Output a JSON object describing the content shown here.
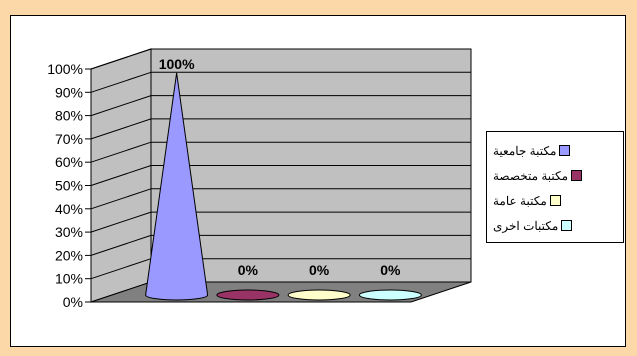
{
  "chart_data": {
    "type": "bar",
    "subtype": "3d-cone",
    "categories": [
      "مكتبة جامعية",
      "مكتبة متخصصة",
      "مكتبة عامة",
      "مكتبات اخرى"
    ],
    "values": [
      100,
      0,
      0,
      0
    ],
    "data_labels": [
      "100%",
      "0%",
      "0%",
      "0%"
    ],
    "ylim": [
      0,
      100
    ],
    "yticks": [
      "0%",
      "10%",
      "20%",
      "30%",
      "40%",
      "50%",
      "60%",
      "70%",
      "80%",
      "90%",
      "100%"
    ],
    "grid": true,
    "legend_position": "right",
    "colors": [
      "#9999ff",
      "#993366",
      "#ffffcc",
      "#ccffff"
    ],
    "wall_color": "#c0c0c0",
    "floor_color": "#808080",
    "frame_color": "#fcd8a8"
  }
}
